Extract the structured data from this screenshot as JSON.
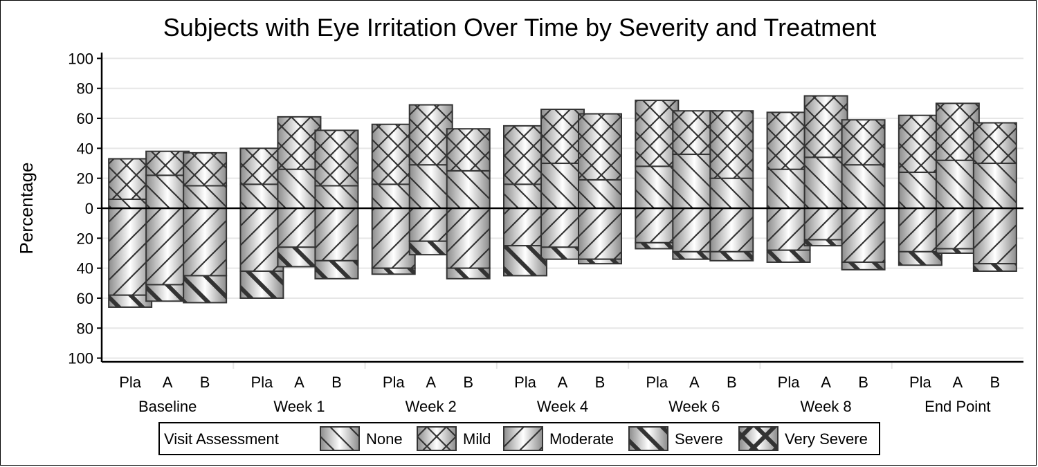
{
  "chart_data": {
    "type": "bar",
    "title": "Subjects with Eye Irritation Over Time by Severity and Treatment",
    "ylabel": "Percentage",
    "ylim": [
      -100,
      100
    ],
    "yticks": [
      {
        "value": 100,
        "label": "100"
      },
      {
        "value": 80,
        "label": "80"
      },
      {
        "value": 60,
        "label": "60"
      },
      {
        "value": 40,
        "label": "40"
      },
      {
        "value": 20,
        "label": "20"
      },
      {
        "value": 0,
        "label": "0"
      },
      {
        "value": -20,
        "label": "20"
      },
      {
        "value": -40,
        "label": "40"
      },
      {
        "value": -60,
        "label": "60"
      },
      {
        "value": -80,
        "label": "80"
      },
      {
        "value": -100,
        "label": "100"
      }
    ],
    "grid": true,
    "legend": {
      "title": "Visit Assessment",
      "placement": "bottom",
      "entries": [
        {
          "key": "none",
          "label": "None"
        },
        {
          "key": "mild",
          "label": "Mild"
        },
        {
          "key": "moderate",
          "label": "Moderate"
        },
        {
          "key": "severe",
          "label": "Severe"
        },
        {
          "key": "very_severe",
          "label": "Very Severe"
        }
      ]
    },
    "colors": {
      "fill_light": "#ffffff",
      "fill_dark": "#8c8c8c",
      "stroke": "#333333",
      "grid": "#e6e6e6"
    },
    "treatments": [
      "Pla",
      "A",
      "B"
    ],
    "visits": [
      {
        "label": "Baseline",
        "bars": [
          {
            "treatment": "Pla",
            "none": 6,
            "mild": 27,
            "moderate": 58,
            "severe": 8,
            "very_severe": 0
          },
          {
            "treatment": "A",
            "none": 22,
            "mild": 16,
            "moderate": 51,
            "severe": 11,
            "very_severe": 0
          },
          {
            "treatment": "B",
            "none": 15,
            "mild": 22,
            "moderate": 45,
            "severe": 18,
            "very_severe": 0
          }
        ]
      },
      {
        "label": "Week 1",
        "bars": [
          {
            "treatment": "Pla",
            "none": 16,
            "mild": 24,
            "moderate": 42,
            "severe": 18,
            "very_severe": 0
          },
          {
            "treatment": "A",
            "none": 26,
            "mild": 35,
            "moderate": 26,
            "severe": 13,
            "very_severe": 0
          },
          {
            "treatment": "B",
            "none": 15,
            "mild": 37,
            "moderate": 35,
            "severe": 12,
            "very_severe": 0
          }
        ]
      },
      {
        "label": "Week 2",
        "bars": [
          {
            "treatment": "Pla",
            "none": 16,
            "mild": 40,
            "moderate": 40,
            "severe": 4,
            "very_severe": 0
          },
          {
            "treatment": "A",
            "none": 29,
            "mild": 40,
            "moderate": 22,
            "severe": 9,
            "very_severe": 0
          },
          {
            "treatment": "B",
            "none": 25,
            "mild": 28,
            "moderate": 40,
            "severe": 7,
            "very_severe": 0
          }
        ]
      },
      {
        "label": "Week 4",
        "bars": [
          {
            "treatment": "Pla",
            "none": 16,
            "mild": 39,
            "moderate": 25,
            "severe": 20,
            "very_severe": 0
          },
          {
            "treatment": "A",
            "none": 30,
            "mild": 36,
            "moderate": 26,
            "severe": 8,
            "very_severe": 0
          },
          {
            "treatment": "B",
            "none": 19,
            "mild": 44,
            "moderate": 34,
            "severe": 3,
            "very_severe": 0
          }
        ]
      },
      {
        "label": "Week 6",
        "bars": [
          {
            "treatment": "Pla",
            "none": 28,
            "mild": 44,
            "moderate": 23,
            "severe": 4,
            "very_severe": 0
          },
          {
            "treatment": "A",
            "none": 36,
            "mild": 29,
            "moderate": 29,
            "severe": 5,
            "very_severe": 0
          },
          {
            "treatment": "B",
            "none": 20,
            "mild": 45,
            "moderate": 29,
            "severe": 6,
            "very_severe": 0
          }
        ]
      },
      {
        "label": "Week 8",
        "bars": [
          {
            "treatment": "Pla",
            "none": 26,
            "mild": 38,
            "moderate": 28,
            "severe": 8,
            "very_severe": 0
          },
          {
            "treatment": "A",
            "none": 34,
            "mild": 41,
            "moderate": 21,
            "severe": 4,
            "very_severe": 0
          },
          {
            "treatment": "B",
            "none": 29,
            "mild": 30,
            "moderate": 36,
            "severe": 5,
            "very_severe": 0
          }
        ]
      },
      {
        "label": "End Point",
        "bars": [
          {
            "treatment": "Pla",
            "none": 24,
            "mild": 38,
            "moderate": 29,
            "severe": 9,
            "very_severe": 0
          },
          {
            "treatment": "A",
            "none": 32,
            "mild": 38,
            "moderate": 27,
            "severe": 3,
            "very_severe": 0
          },
          {
            "treatment": "B",
            "none": 30,
            "mild": 27,
            "moderate": 37,
            "severe": 5,
            "very_severe": 0
          }
        ]
      }
    ]
  }
}
